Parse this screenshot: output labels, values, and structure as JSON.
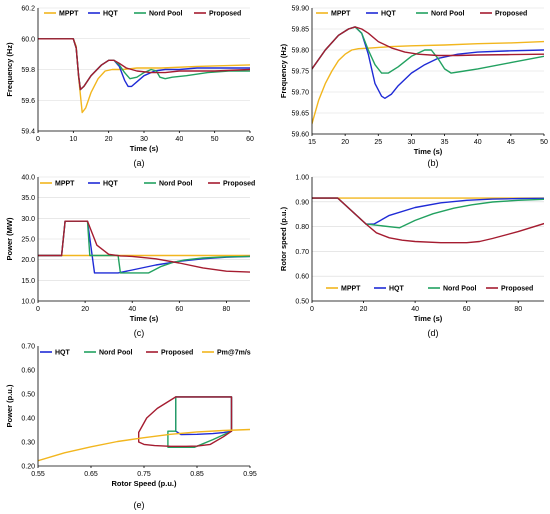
{
  "colors": {
    "mppt": "#f2b61e",
    "hqt": "#1f2bd6",
    "nord": "#22a160",
    "proposed": "#a51c30",
    "pm": "#f2b61e"
  },
  "chart_data": [
    {
      "id": "a",
      "type": "line",
      "panel_label": "(a)",
      "xlabel": "Time (s)",
      "ylabel": "Frequency (Hz)",
      "xlim": [
        0,
        60
      ],
      "ylim": [
        59.4,
        60.2
      ],
      "xticks": [
        0,
        10,
        20,
        30,
        40,
        50,
        60
      ],
      "yticks": [
        59.4,
        59.6,
        59.8,
        60.0,
        60.2
      ],
      "ytick_labels": [
        "59.4",
        "59.6",
        "59.8",
        "60.0",
        "60.2"
      ],
      "grid": "horizontal",
      "legend_position": "top-right",
      "series": [
        {
          "name": "MPPT",
          "color_key": "mppt",
          "x": [
            0,
            10,
            10.8,
            11.5,
            12.5,
            13.5,
            15,
            17,
            19,
            21,
            24,
            28,
            35,
            45,
            60
          ],
          "y": [
            60,
            60,
            59.95,
            59.75,
            59.52,
            59.55,
            59.65,
            59.74,
            59.79,
            59.8,
            59.8,
            59.81,
            59.81,
            59.82,
            59.83
          ]
        },
        {
          "name": "HQT",
          "color_key": "hqt",
          "x": [
            0,
            10,
            10.8,
            11.5,
            12,
            13,
            15,
            18,
            20,
            21.5,
            23,
            24.5,
            25.5,
            26.5,
            28,
            30,
            33,
            36,
            40,
            45,
            50,
            60
          ],
          "y": [
            60,
            60,
            59.94,
            59.76,
            59.67,
            59.69,
            59.76,
            59.83,
            59.86,
            59.86,
            59.82,
            59.73,
            59.69,
            59.69,
            59.72,
            59.76,
            59.79,
            59.8,
            59.8,
            59.81,
            59.81,
            59.81
          ]
        },
        {
          "name": "Nord Pool",
          "color_key": "nord",
          "x": [
            0,
            10,
            10.8,
            11.5,
            12,
            13,
            15,
            18,
            20,
            21.5,
            23,
            24.5,
            26,
            28,
            30,
            32,
            33.5,
            34.5,
            36,
            38,
            42,
            48,
            54,
            60
          ],
          "y": [
            60,
            60,
            59.94,
            59.76,
            59.67,
            59.69,
            59.76,
            59.83,
            59.86,
            59.86,
            59.83,
            59.78,
            59.74,
            59.75,
            59.78,
            59.8,
            59.79,
            59.75,
            59.74,
            59.75,
            59.76,
            59.78,
            59.79,
            59.79
          ]
        },
        {
          "name": "Proposed",
          "color_key": "proposed",
          "x": [
            0,
            10,
            10.8,
            11.5,
            12,
            13,
            15,
            18,
            20,
            21.5,
            23,
            25,
            28,
            32,
            36,
            40,
            50,
            60
          ],
          "y": [
            60,
            60,
            59.94,
            59.76,
            59.67,
            59.69,
            59.76,
            59.83,
            59.86,
            59.86,
            59.84,
            59.81,
            59.79,
            59.78,
            59.78,
            59.79,
            59.79,
            59.8
          ]
        }
      ]
    },
    {
      "id": "b",
      "type": "line",
      "panel_label": "(b)",
      "xlabel": "Time (s)",
      "ylabel": "Frequency (Hz)",
      "xlim": [
        15,
        50
      ],
      "ylim": [
        59.6,
        59.9
      ],
      "xticks": [
        15,
        20,
        25,
        30,
        35,
        40,
        45,
        50
      ],
      "yticks": [
        59.6,
        59.65,
        59.7,
        59.75,
        59.8,
        59.85,
        59.9
      ],
      "ytick_labels": [
        "59.60",
        "59.65",
        "59.70",
        "59.75",
        "59.80",
        "59.85",
        "59.90"
      ],
      "grid": "horizontal",
      "legend_position": "top-right",
      "series": [
        {
          "name": "MPPT",
          "color_key": "mppt",
          "x": [
            15,
            16,
            17,
            18,
            19,
            20,
            21,
            22,
            24,
            27,
            30,
            35,
            40,
            45,
            50
          ],
          "y": [
            59.625,
            59.68,
            59.72,
            59.75,
            59.775,
            59.79,
            59.8,
            59.803,
            59.805,
            59.808,
            59.81,
            59.812,
            59.815,
            59.817,
            59.82
          ]
        },
        {
          "name": "HQT",
          "color_key": "hqt",
          "x": [
            15,
            17,
            19,
            20.5,
            21.5,
            22.5,
            23.5,
            24.5,
            25.5,
            26,
            27,
            28,
            30,
            32,
            34,
            37,
            40,
            45,
            50
          ],
          "y": [
            59.755,
            59.8,
            59.835,
            59.85,
            59.855,
            59.84,
            59.79,
            59.72,
            59.69,
            59.685,
            59.695,
            59.715,
            59.745,
            59.765,
            59.78,
            59.79,
            59.795,
            59.798,
            59.8
          ]
        },
        {
          "name": "Nord Pool",
          "color_key": "nord",
          "x": [
            15,
            17,
            19,
            20.5,
            21.5,
            22.5,
            23.5,
            24.5,
            25.5,
            26.5,
            28,
            30,
            32,
            33,
            34,
            35,
            36,
            38,
            40,
            45,
            50
          ],
          "y": [
            59.755,
            59.8,
            59.835,
            59.85,
            59.855,
            59.84,
            59.8,
            59.765,
            59.745,
            59.745,
            59.76,
            59.785,
            59.8,
            59.8,
            59.78,
            59.755,
            59.745,
            59.75,
            59.755,
            59.77,
            59.785
          ]
        },
        {
          "name": "Proposed",
          "color_key": "proposed",
          "x": [
            15,
            17,
            19,
            20.5,
            21.5,
            22.5,
            23.5,
            25,
            27,
            29,
            31,
            34,
            37,
            40,
            45,
            50
          ],
          "y": [
            59.755,
            59.8,
            59.835,
            59.85,
            59.855,
            59.85,
            59.84,
            59.82,
            59.805,
            59.795,
            59.79,
            59.787,
            59.787,
            59.788,
            59.789,
            59.79
          ]
        }
      ]
    },
    {
      "id": "c",
      "type": "line",
      "panel_label": "(c)",
      "xlabel": "Time (s)",
      "ylabel": "Power (MW)",
      "xlim": [
        0,
        90
      ],
      "ylim": [
        10,
        40
      ],
      "xticks": [
        0,
        20,
        40,
        60,
        80
      ],
      "yticks": [
        10,
        15,
        20,
        25,
        30,
        35,
        40
      ],
      "ytick_labels": [
        "10.0",
        "15.0",
        "20.0",
        "25.0",
        "30.0",
        "35.0",
        "40.0"
      ],
      "grid": "horizontal",
      "legend_position": "top",
      "series": [
        {
          "name": "MPPT",
          "color_key": "mppt",
          "x": [
            0,
            90
          ],
          "y": [
            21,
            21
          ]
        },
        {
          "name": "HQT",
          "color_key": "hqt",
          "x": [
            0,
            10,
            11.5,
            21,
            24,
            34,
            40,
            50,
            60,
            70,
            80,
            90
          ],
          "y": [
            21,
            21,
            29.3,
            29.3,
            16.8,
            16.8,
            17.5,
            18.7,
            19.6,
            20.2,
            20.6,
            20.8
          ]
        },
        {
          "name": "Nord Pool",
          "color_key": "nord",
          "x": [
            0,
            10,
            11.5,
            21,
            22,
            34,
            35,
            47,
            52,
            57,
            62,
            70,
            80,
            90
          ],
          "y": [
            21,
            21,
            29.3,
            29.3,
            21,
            21,
            16.8,
            16.8,
            18.3,
            19.3,
            19.9,
            20.4,
            20.7,
            20.8
          ]
        },
        {
          "name": "Proposed",
          "color_key": "proposed",
          "x": [
            0,
            10,
            11.5,
            21,
            25,
            30,
            35,
            40,
            50,
            60,
            70,
            80,
            90
          ],
          "y": [
            21,
            21,
            29.3,
            29.3,
            23.5,
            21.3,
            20.9,
            20.8,
            20.2,
            19.2,
            18,
            17.2,
            17
          ]
        }
      ]
    },
    {
      "id": "d",
      "type": "line",
      "panel_label": "(d)",
      "xlabel": "Time (s)",
      "ylabel": "Rotor speed (p.u.)",
      "xlim": [
        0,
        90
      ],
      "ylim": [
        0.5,
        1.0
      ],
      "xticks": [
        0,
        20,
        40,
        60,
        80
      ],
      "yticks": [
        0.5,
        0.6,
        0.7,
        0.8,
        0.9,
        1.0
      ],
      "ytick_labels": [
        "0.50",
        "0.60",
        "0.70",
        "0.80",
        "0.90",
        "1.00"
      ],
      "grid": "horizontal",
      "legend_position": "bottom",
      "series": [
        {
          "name": "MPPT",
          "color_key": "mppt",
          "x": [
            0,
            90
          ],
          "y": [
            0.915,
            0.915
          ]
        },
        {
          "name": "HQT",
          "color_key": "hqt",
          "x": [
            0,
            10,
            21,
            24,
            30,
            40,
            50,
            60,
            70,
            80,
            90
          ],
          "y": [
            0.915,
            0.915,
            0.81,
            0.81,
            0.845,
            0.877,
            0.896,
            0.906,
            0.911,
            0.913,
            0.914
          ]
        },
        {
          "name": "Nord Pool",
          "color_key": "nord",
          "x": [
            0,
            10,
            21,
            34,
            40,
            47,
            55,
            62,
            70,
            80,
            90
          ],
          "y": [
            0.915,
            0.915,
            0.81,
            0.795,
            0.825,
            0.852,
            0.874,
            0.888,
            0.899,
            0.906,
            0.91
          ]
        },
        {
          "name": "Proposed",
          "color_key": "proposed",
          "x": [
            0,
            10,
            21,
            25,
            30,
            35,
            40,
            50,
            60,
            65,
            70,
            80,
            90
          ],
          "y": [
            0.915,
            0.915,
            0.81,
            0.775,
            0.755,
            0.745,
            0.74,
            0.735,
            0.735,
            0.74,
            0.752,
            0.78,
            0.812
          ]
        }
      ]
    },
    {
      "id": "e",
      "type": "line",
      "panel_label": "(e)",
      "xlabel": "Rotor Speed (p.u.)",
      "ylabel": "Power (p.u.)",
      "xlim": [
        0.55,
        0.95
      ],
      "ylim": [
        0.2,
        0.7
      ],
      "xticks": [
        0.55,
        0.65,
        0.75,
        0.85,
        0.95
      ],
      "xtick_labels": [
        "0.55",
        "0.65",
        "0.75",
        "0.85",
        "0.95"
      ],
      "yticks": [
        0.2,
        0.3,
        0.4,
        0.5,
        0.6,
        0.7
      ],
      "ytick_labels": [
        "0.20",
        "0.30",
        "0.40",
        "0.50",
        "0.60",
        "0.70"
      ],
      "grid": "none",
      "legend_position": "top",
      "series": [
        {
          "name": "HQT",
          "color_key": "hqt",
          "x": [
            0.915,
            0.915,
            0.81,
            0.81,
            0.81,
            0.82,
            0.85,
            0.88,
            0.9,
            0.91,
            0.915
          ],
          "y": [
            0.345,
            0.488,
            0.488,
            0.43,
            0.345,
            0.331,
            0.332,
            0.335,
            0.339,
            0.343,
            0.345
          ]
        },
        {
          "name": "Nord Pool",
          "color_key": "nord",
          "x": [
            0.915,
            0.915,
            0.81,
            0.81,
            0.795,
            0.795,
            0.845,
            0.88,
            0.91,
            0.915
          ],
          "y": [
            0.345,
            0.488,
            0.488,
            0.345,
            0.345,
            0.278,
            0.278,
            0.31,
            0.34,
            0.345
          ]
        },
        {
          "name": "Proposed",
          "color_key": "proposed",
          "x": [
            0.915,
            0.915,
            0.81,
            0.775,
            0.755,
            0.74,
            0.74,
            0.75,
            0.77,
            0.8,
            0.83,
            0.85,
            0.875,
            0.9,
            0.915
          ],
          "y": [
            0.345,
            0.488,
            0.488,
            0.44,
            0.4,
            0.34,
            0.3,
            0.29,
            0.285,
            0.282,
            0.282,
            0.283,
            0.29,
            0.322,
            0.345
          ]
        },
        {
          "name": "Pm@7m/s",
          "color_key": "pm",
          "x": [
            0.55,
            0.6,
            0.65,
            0.7,
            0.75,
            0.8,
            0.85,
            0.9,
            0.95
          ],
          "y": [
            0.222,
            0.255,
            0.28,
            0.302,
            0.318,
            0.332,
            0.342,
            0.348,
            0.352
          ]
        }
      ]
    }
  ]
}
